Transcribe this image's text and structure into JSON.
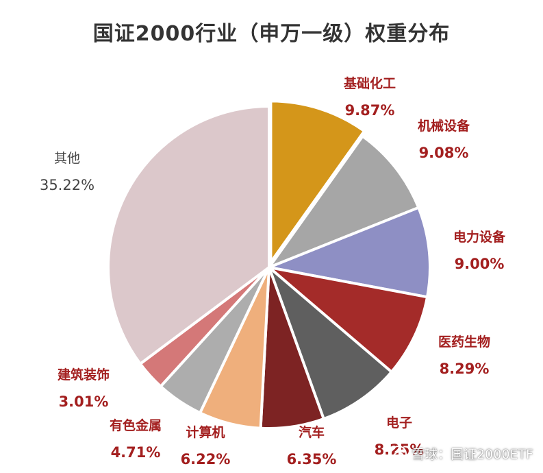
{
  "chart_data": {
    "type": "pie",
    "title": "国证2000行业（申万一级）权重分布",
    "slices": [
      {
        "label": "基础化工",
        "value": 9.87,
        "display": "9.87%",
        "color": "#D4961A"
      },
      {
        "label": "机械设备",
        "value": 9.08,
        "display": "9.08%",
        "color": "#A6A6A6"
      },
      {
        "label": "电力设备",
        "value": 9.0,
        "display": "9.00%",
        "color": "#8E8FC4"
      },
      {
        "label": "医药生物",
        "value": 8.29,
        "display": "8.29%",
        "color": "#A42B29"
      },
      {
        "label": "电子",
        "value": 8.25,
        "display": "8.25%",
        "color": "#5F5F5F"
      },
      {
        "label": "汽车",
        "value": 6.35,
        "display": "6.35%",
        "color": "#7D2323"
      },
      {
        "label": "计算机",
        "value": 6.22,
        "display": "6.22%",
        "color": "#EFAF7C"
      },
      {
        "label": "有色金属",
        "value": 4.71,
        "display": "4.71%",
        "color": "#ADADAD"
      },
      {
        "label": "建筑装饰",
        "value": 3.01,
        "display": "3.01%",
        "color": "#D47878"
      },
      {
        "label": "其他",
        "value": 35.22,
        "display": "35.22%",
        "color": "#DCC8CB"
      }
    ],
    "label_color": "#A31F1F",
    "other_label_color": "#444444"
  },
  "watermark": {
    "text": "雪球：国证2000ETF",
    "icon": "snowball-icon"
  }
}
